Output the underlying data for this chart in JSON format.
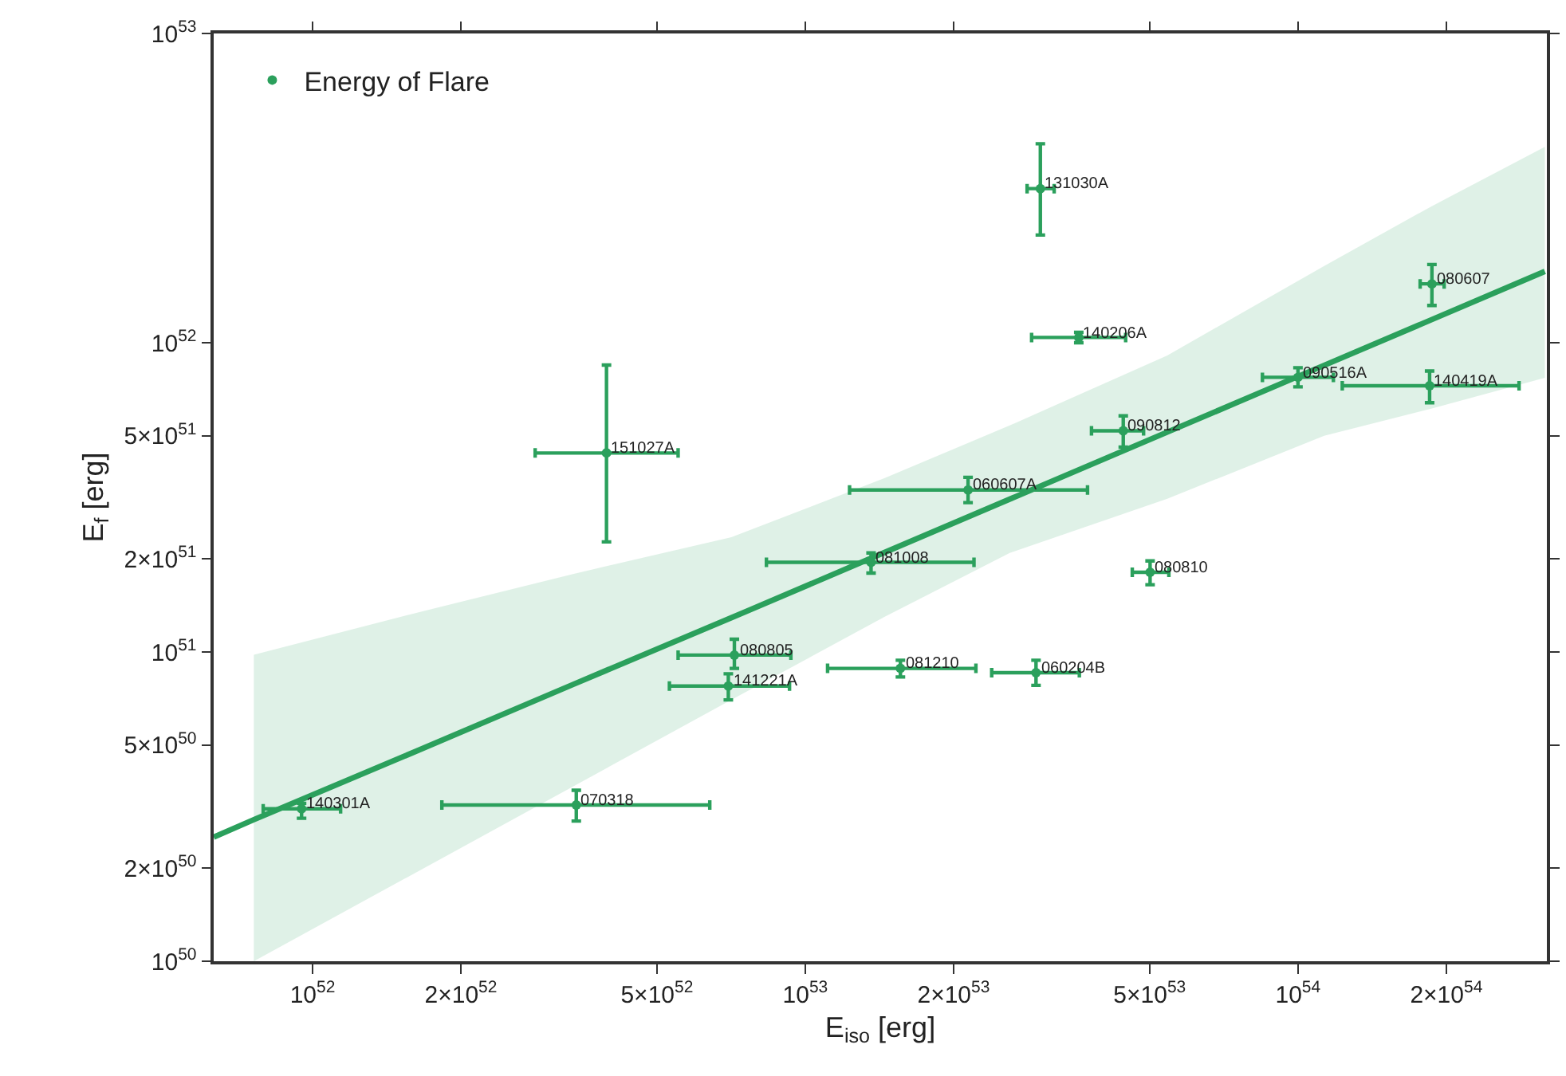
{
  "chart_data": {
    "type": "scatter",
    "xlabel": "E$_{iso}$ [erg]",
    "ylabel": "E$_{f}$ [erg]",
    "log": "xy",
    "legend": "top left",
    "xlim": [
      6.3e+51,
      3.2e+54
    ],
    "ylim": [
      1e+50,
      1e+53
    ],
    "xticks": [
      {
        "value": 1e+52,
        "label": "10$^{52}$"
      },
      {
        "value": 2e+52,
        "label": "2×10$^{52}$"
      },
      {
        "value": 5e+52,
        "label": "5×10$^{52}$"
      },
      {
        "value": 1e+53,
        "label": "10$^{53}$"
      },
      {
        "value": 2e+53,
        "label": "2×10$^{53}$"
      },
      {
        "value": 5e+53,
        "label": "5×10$^{53}$"
      },
      {
        "value": 1e+54,
        "label": "10$^{54}$"
      },
      {
        "value": 2e+54,
        "label": "2×10$^{54}$"
      }
    ],
    "yticks": [
      {
        "value": 1e+50,
        "label": "10$^{50}$"
      },
      {
        "value": 2e+50,
        "label": "2×10$^{50}$"
      },
      {
        "value": 5e+50,
        "label": "5×10$^{50}$"
      },
      {
        "value": 1e+51,
        "label": "10$^{51}$"
      },
      {
        "value": 2e+51,
        "label": "2×10$^{51}$"
      },
      {
        "value": 5e+51,
        "label": "5×10$^{51}$"
      },
      {
        "value": 1e+52,
        "label": "10$^{52}$"
      },
      {
        "value": 1e+53,
        "label": "10$^{53}$"
      }
    ],
    "series": [
      {
        "name": "Energy of Flare",
        "color": "#2ba05c",
        "x": [
          3.95e+52,
          3e+53,
          3.59e+53,
          1.87e+54,
          1e+54,
          1.85e+54,
          4.42e+53,
          2.14e+53,
          1.36e+53,
          5.01e+53,
          7.18e+52,
          6.98e+52,
          1.56e+53,
          2.94e+53,
          3.43e+52,
          9.5e+51
        ],
        "values": [
          4.4e+51,
          3.15e+52,
          1.04e+52,
          1.55e+52,
          7.73e+51,
          7.26e+51,
          5.19e+51,
          3.34e+51,
          1.95e+51,
          1.81e+51,
          9.77e+50,
          7.76e+50,
          8.85e+50,
          8.57e+50,
          3.2e+50,
          3.11e+50
        ],
        "errors": [
          [
            2.27e+51,
            8.47e+51
          ],
          [
            2.23e+52,
            4.4e+52
          ],
          [
            1e+52,
            1.08e+52
          ],
          [
            1.32e+52,
            1.79e+52
          ],
          [
            7.2e+51,
            8.3e+51
          ],
          [
            6.4e+51,
            8.1e+51
          ],
          [
            4.6e+51,
            5.8e+51
          ],
          [
            3.04e+51,
            3.67e+51
          ],
          [
            1.8e+51,
            2.09e+51
          ],
          [
            1.65e+51,
            1.97e+51
          ],
          [
            8.85e+50,
            1.1e+51
          ],
          [
            7e+50,
            8.5e+50
          ],
          [
            8.3e+50,
            9.4e+50
          ],
          [
            7.8e+50,
            9.4e+50
          ],
          [
            2.84e+50,
            3.57e+50
          ],
          [
            2.9e+50,
            3.24e+50
          ]
        ],
        "xerrors": [
          [
            2.83e+52,
            5.52e+52
          ],
          [
            2.82e+53,
            3.2e+53
          ],
          [
            2.88e+53,
            4.47e+53
          ],
          [
            1.77e+54,
            1.98e+54
          ],
          [
            8.47e+53,
            1.18e+54
          ],
          [
            1.23e+54,
            2.81e+54
          ],
          [
            3.81e+53,
            4.86e+53
          ],
          [
            1.23e+53,
            3.74e+53
          ],
          [
            8.34e+52,
            2.2e+53
          ],
          [
            4.61e+53,
            5.47e+53
          ],
          [
            5.52e+52,
            9.35e+52
          ],
          [
            5.3e+52,
            9.29e+52
          ],
          [
            1.11e+53,
            2.22e+53
          ],
          [
            2.39e+53,
            3.6e+53
          ],
          [
            1.83e+52,
            6.4e+52
          ],
          [
            7.94e+51,
            1.14e+52
          ]
        ]
      },
      {
        "type": "line",
        "color": "#2ba05c",
        "x": [
          6.3e+51,
          7.6e+51,
          1.63e+52,
          3.39e+52,
          7.08e+52,
          1.45e+53,
          2.6e+53,
          5.43e+53,
          1.13e+54,
          1.85e+54,
          3.17e+54
        ],
        "values": [
          2.52e+50,
          2.87e+50,
          4.79e+50,
          7.87e+50,
          1.29e+51,
          2.1e+51,
          3.12e+51,
          5.14e+51,
          8.45e+51,
          1.18e+52,
          1.7e+52
        ],
        "lower": [
          null,
          1e+50,
          1.95e+50,
          3.69e+50,
          7e+50,
          1.3e+51,
          2.09e+51,
          3.13e+51,
          5e+51,
          6.1e+51,
          7.7e+51
        ],
        "upper": [
          null,
          9.8e+50,
          1.34e+51,
          1.79e+51,
          2.35e+51,
          3.65e+51,
          5.4e+51,
          9.1e+51,
          1.77e+52,
          2.74e+52,
          4.3e+52
        ]
      }
    ],
    "annotations": [
      {
        "text": "151027A",
        "x": 3.95e+52,
        "y": 4.4e+51
      },
      {
        "text": "131030A",
        "x": 3e+53,
        "y": 3.15e+52
      },
      {
        "text": "140206A",
        "x": 3.59e+53,
        "y": 1.04e+52
      },
      {
        "text": "080607",
        "x": 1.87e+54,
        "y": 1.55e+52
      },
      {
        "text": "090516A",
        "x": 1e+54,
        "y": 7.73e+51
      },
      {
        "text": "140419A",
        "x": 1.85e+54,
        "y": 7.26e+51
      },
      {
        "text": "090812",
        "x": 4.42e+53,
        "y": 5.19e+51
      },
      {
        "text": "060607A",
        "x": 2.14e+53,
        "y": 3.34e+51
      },
      {
        "text": "081008",
        "x": 1.36e+53,
        "y": 1.95e+51
      },
      {
        "text": "080810",
        "x": 5.01e+53,
        "y": 1.81e+51
      },
      {
        "text": "080805",
        "x": 7.18e+52,
        "y": 9.77e+50
      },
      {
        "text": "141221A",
        "x": 6.98e+52,
        "y": 7.76e+50
      },
      {
        "text": "081210",
        "x": 1.56e+53,
        "y": 8.85e+50
      },
      {
        "text": "060204B",
        "x": 2.94e+53,
        "y": 8.57e+50
      },
      {
        "text": "070318",
        "x": 3.43e+52,
        "y": 3.2e+50
      },
      {
        "text": "140301A",
        "x": 9.5e+51,
        "y": 3.11e+50
      }
    ]
  }
}
